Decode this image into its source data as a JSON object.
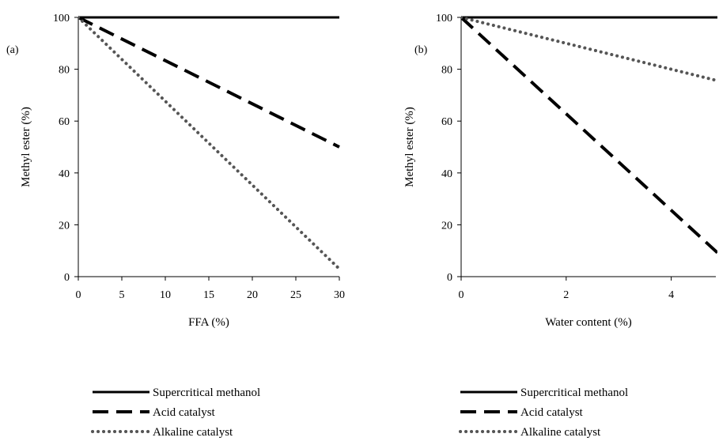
{
  "chart_data": [
    {
      "type": "line",
      "panel_label": "(a)",
      "xlabel": "FFA (%)",
      "ylabel": "Methyl ester (%)",
      "xlim": [
        0,
        30
      ],
      "ylim": [
        0,
        100
      ],
      "xticks": [
        "0",
        "5",
        "10",
        "15",
        "20",
        "25",
        "30"
      ],
      "yticks": [
        "0",
        "20",
        "40",
        "60",
        "80",
        "100"
      ],
      "grid": false,
      "legend_position": "bottom",
      "series": [
        {
          "name": "Supercritical methanol",
          "style": "solid",
          "x": [
            0,
            30
          ],
          "y": [
            100,
            100
          ]
        },
        {
          "name": "Acid catalyst",
          "style": "dashed",
          "x": [
            0,
            30
          ],
          "y": [
            100,
            50
          ]
        },
        {
          "name": "Alkaline catalyst",
          "style": "dotted",
          "x": [
            0,
            30
          ],
          "y": [
            100,
            3
          ]
        }
      ]
    },
    {
      "type": "line",
      "panel_label": "(b)",
      "xlabel": "Water content (%)",
      "ylabel": "Methyl ester (%)",
      "xlim": [
        0,
        5
      ],
      "ylim": [
        0,
        100
      ],
      "xticks": [
        "0",
        "2",
        "4"
      ],
      "xtick_values": [
        0,
        2,
        4
      ],
      "yticks": [
        "0",
        "20",
        "40",
        "60",
        "80",
        "100"
      ],
      "grid": false,
      "legend_position": "bottom",
      "series": [
        {
          "name": "Supercritical methanol",
          "style": "solid",
          "x": [
            0,
            5
          ],
          "y": [
            100,
            100
          ]
        },
        {
          "name": "Acid catalyst",
          "style": "dashed",
          "x": [
            0,
            5
          ],
          "y": [
            100,
            7
          ]
        },
        {
          "name": "Alkaline catalyst",
          "style": "dotted",
          "x": [
            0,
            5
          ],
          "y": [
            100,
            75
          ]
        }
      ]
    }
  ]
}
